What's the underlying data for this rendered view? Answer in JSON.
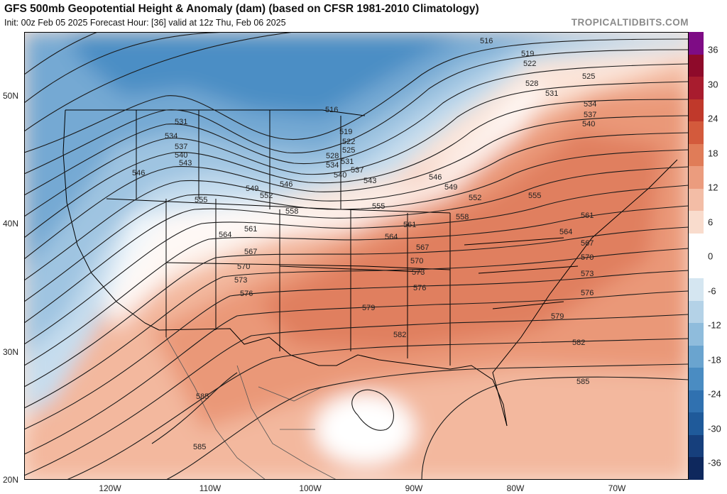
{
  "header": {
    "title": "GFS 500mb Geopotential Height & Anomaly (dam) (based on CFSR 1981-2010 Climatology)",
    "subtitle": "Init: 00z Feb 05 2025   Forecast Hour: [36]   valid at 12z Thu, Feb 06 2025",
    "credit": "TROPICALTIDBITS.COM"
  },
  "axes": {
    "latitudes": [
      "50N",
      "40N",
      "30N",
      "20N"
    ],
    "longitudes": [
      "120W",
      "110W",
      "100W",
      "90W",
      "80W",
      "70W"
    ]
  },
  "colorbar": {
    "labels": [
      "36",
      "30",
      "24",
      "18",
      "12",
      "6",
      "0",
      "-6",
      "-12",
      "-18",
      "-24",
      "-30",
      "-36"
    ],
    "colors": [
      "#7e0c85",
      "#8e0a2a",
      "#a81c2e",
      "#c0392b",
      "#d35a3c",
      "#e07c58",
      "#eb9c7e",
      "#f3bda6",
      "#f9dccd",
      "#ffffff",
      "#ffffff",
      "#d5e6f1",
      "#b4d2e7",
      "#8fbcdc",
      "#6aa4cf",
      "#4a8cc2",
      "#3071b0",
      "#1f5a9a",
      "#163f7c",
      "#0e285d"
    ]
  },
  "contours": {
    "labels": [
      "516",
      "519",
      "522",
      "525",
      "528",
      "531",
      "534",
      "537",
      "540",
      "543",
      "546",
      "549",
      "552",
      "555",
      "558",
      "561",
      "564",
      "567",
      "570",
      "573",
      "576",
      "579",
      "582",
      "585"
    ]
  },
  "colors": {
    "cold_anomaly": "#3a7fbe",
    "warm_anomaly": "#e0805c",
    "contour": "#1a1a1a",
    "coastline": "#000000"
  }
}
